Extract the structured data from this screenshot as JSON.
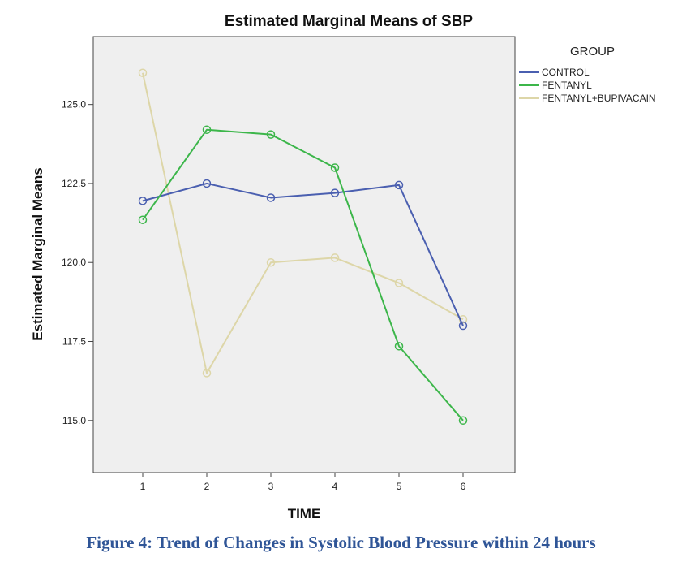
{
  "chart_data": {
    "type": "line",
    "title": "Estimated Marginal Means of SBP",
    "xlabel": "TIME",
    "ylabel": "Estimated Marginal Means",
    "x": [
      1,
      2,
      3,
      4,
      5,
      6
    ],
    "ylim": [
      113.35,
      127.15
    ],
    "yticks": [
      "115.0",
      "117.5",
      "120.0",
      "122.5",
      "125.0"
    ],
    "legend_title": "GROUP",
    "legend_position": "right",
    "grid": false,
    "background": "#efefef",
    "series": [
      {
        "name": "CONTROL",
        "color": "#4a5fb0",
        "values": [
          121.95,
          122.5,
          122.05,
          122.2,
          122.45,
          118.0
        ]
      },
      {
        "name": "FENTANYL",
        "color": "#3cb64a",
        "values": [
          121.35,
          124.2,
          124.05,
          123.0,
          117.35,
          115.0
        ]
      },
      {
        "name": "FENTANYL+BUPIVACAIN",
        "color": "#ddd6a8",
        "values": [
          126.0,
          116.5,
          120.0,
          120.15,
          119.35,
          118.2
        ]
      }
    ]
  },
  "caption": "Figure 4: Trend of Changes in Systolic Blood Pressure within 24 hours"
}
